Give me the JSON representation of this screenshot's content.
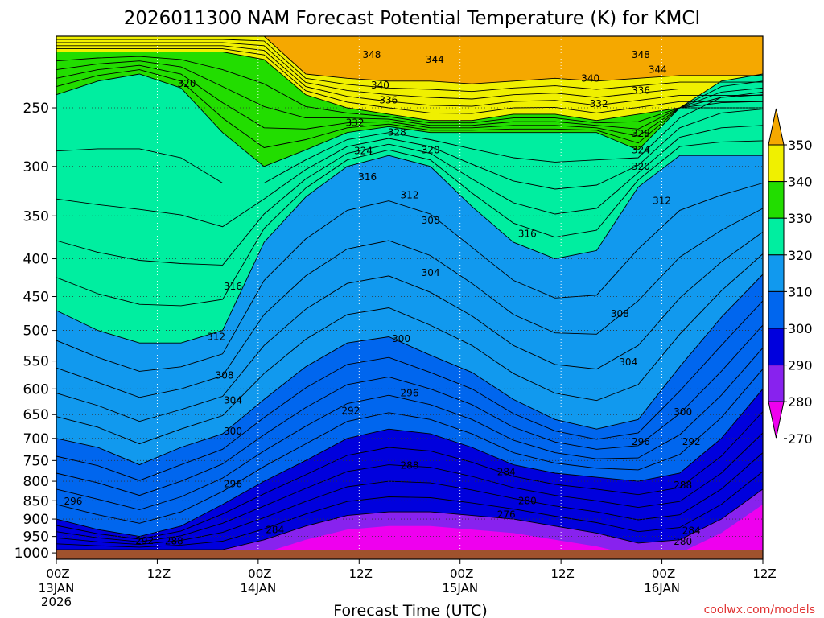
{
  "chart_data": {
    "type": "heatmap",
    "title": "2026011300 NAM Forecast Potential Temperature (K) for KMCI",
    "xlabel": "Forecast Time (UTC)",
    "ylabel": "",
    "watermark": "coolwx.com/models",
    "x_ticks": [
      {
        "hour": 0,
        "label": "00Z",
        "sub": [
          "13JAN",
          "2026"
        ]
      },
      {
        "hour": 12,
        "label": "12Z",
        "sub": []
      },
      {
        "hour": 24,
        "label": "00Z",
        "sub": [
          "14JAN"
        ]
      },
      {
        "hour": 36,
        "label": "12Z",
        "sub": []
      },
      {
        "hour": 48,
        "label": "00Z",
        "sub": [
          "15JAN"
        ]
      },
      {
        "hour": 60,
        "label": "12Z",
        "sub": []
      },
      {
        "hour": 72,
        "label": "00Z",
        "sub": [
          "16JAN"
        ]
      },
      {
        "hour": 84,
        "label": "12Z",
        "sub": []
      }
    ],
    "x_range": [
      0,
      84
    ],
    "y_ticks": [
      250,
      300,
      350,
      400,
      450,
      500,
      550,
      600,
      650,
      700,
      750,
      800,
      850,
      900,
      950,
      1000
    ],
    "y_range_hpa": [
      200,
      1020
    ],
    "surface_hpa": 990,
    "colors": {
      "ground": "#a0522d",
      "270": "#ee00ee",
      "280": "#8822ee",
      "290": "#0000dd",
      "300": "#0066ee",
      "310": "#1199ee",
      "320": "#00eea0",
      "330": "#22dd00",
      "340": "#f0f000",
      "350": "#f5a800"
    },
    "colorbar": {
      "labels": [
        350,
        340,
        330,
        320,
        310,
        300,
        290,
        280,
        270
      ],
      "colors": [
        "#f5a800",
        "#f0f000",
        "#22dd00",
        "#00eea0",
        "#1199ee",
        "#0066ee",
        "#0000dd",
        "#8822ee",
        "#ee00ee"
      ]
    },
    "series": [
      {
        "theta": 320,
        "pressure_hpa": [
          240,
          230,
          225,
          235,
          270,
          300,
          285,
          270,
          265,
          270,
          270,
          270,
          270,
          270,
          285,
          250,
          230,
          225
        ]
      },
      {
        "theta": 330,
        "pressure_hpa": [
          210,
          210,
          210,
          210,
          210,
          215,
          240,
          250,
          255,
          260,
          260,
          255,
          255,
          260,
          255,
          250,
          250,
          250
        ]
      },
      {
        "theta": 340,
        "pressure_hpa": [
          200,
          200,
          200,
          200,
          200,
          200,
          225,
          228,
          230,
          230,
          232,
          230,
          228,
          230,
          228,
          226,
          226,
          226
        ]
      },
      {
        "theta": 310,
        "pressure_hpa": [
          470,
          500,
          520,
          520,
          500,
          380,
          330,
          300,
          290,
          300,
          340,
          380,
          400,
          390,
          320,
          290,
          290,
          290
        ]
      },
      {
        "theta": 300,
        "pressure_hpa": [
          700,
          720,
          760,
          720,
          690,
          620,
          560,
          520,
          510,
          540,
          570,
          620,
          660,
          680,
          660,
          560,
          480,
          420
        ]
      },
      {
        "theta": 290,
        "pressure_hpa": [
          900,
          930,
          950,
          920,
          860,
          800,
          750,
          700,
          680,
          690,
          720,
          760,
          780,
          790,
          800,
          780,
          700,
          600
        ]
      },
      {
        "theta": 280,
        "pressure_hpa": [
          990,
          990,
          990,
          990,
          990,
          960,
          920,
          890,
          880,
          880,
          890,
          900,
          920,
          940,
          970,
          960,
          900,
          820
        ]
      }
    ],
    "contour_labels": [
      {
        "text": "348",
        "hour": 37.5,
        "hpa": 212
      },
      {
        "text": "344",
        "hour": 45,
        "hpa": 215
      },
      {
        "text": "348",
        "hour": 69.5,
        "hpa": 212
      },
      {
        "text": "344",
        "hour": 71.5,
        "hpa": 222
      },
      {
        "text": "320",
        "hour": 15.5,
        "hpa": 232
      },
      {
        "text": "340",
        "hour": 38.5,
        "hpa": 233
      },
      {
        "text": "336",
        "hour": 39.5,
        "hpa": 244
      },
      {
        "text": "340",
        "hour": 63.5,
        "hpa": 228
      },
      {
        "text": "336",
        "hour": 69.5,
        "hpa": 237
      },
      {
        "text": "332",
        "hour": 64.5,
        "hpa": 247
      },
      {
        "text": "332",
        "hour": 35.5,
        "hpa": 262
      },
      {
        "text": "328",
        "hour": 40.5,
        "hpa": 270
      },
      {
        "text": "328",
        "hour": 69.5,
        "hpa": 271
      },
      {
        "text": "324",
        "hour": 36.5,
        "hpa": 286
      },
      {
        "text": "320",
        "hour": 44.5,
        "hpa": 285
      },
      {
        "text": "324",
        "hour": 69.5,
        "hpa": 285
      },
      {
        "text": "320",
        "hour": 69.5,
        "hpa": 300
      },
      {
        "text": "316",
        "hour": 37,
        "hpa": 310
      },
      {
        "text": "312",
        "hour": 42,
        "hpa": 328
      },
      {
        "text": "312",
        "hour": 72,
        "hpa": 334
      },
      {
        "text": "308",
        "hour": 44.5,
        "hpa": 355
      },
      {
        "text": "316",
        "hour": 56,
        "hpa": 370
      },
      {
        "text": "304",
        "hour": 44.5,
        "hpa": 418
      },
      {
        "text": "316",
        "hour": 21,
        "hpa": 436
      },
      {
        "text": "308",
        "hour": 67,
        "hpa": 475
      },
      {
        "text": "312",
        "hour": 19,
        "hpa": 510
      },
      {
        "text": "300",
        "hour": 41,
        "hpa": 513
      },
      {
        "text": "304",
        "hour": 68,
        "hpa": 552
      },
      {
        "text": "308",
        "hour": 20,
        "hpa": 575
      },
      {
        "text": "296",
        "hour": 42,
        "hpa": 608
      },
      {
        "text": "304",
        "hour": 21,
        "hpa": 622
      },
      {
        "text": "292",
        "hour": 35,
        "hpa": 642
      },
      {
        "text": "300",
        "hour": 74.5,
        "hpa": 645
      },
      {
        "text": "300",
        "hour": 21,
        "hpa": 685
      },
      {
        "text": "296",
        "hour": 69.5,
        "hpa": 707
      },
      {
        "text": "292",
        "hour": 75.5,
        "hpa": 707
      },
      {
        "text": "288",
        "hour": 42,
        "hpa": 762
      },
      {
        "text": "284",
        "hour": 53.5,
        "hpa": 777
      },
      {
        "text": "296",
        "hour": 21,
        "hpa": 807
      },
      {
        "text": "288",
        "hour": 74.5,
        "hpa": 810
      },
      {
        "text": "280",
        "hour": 56,
        "hpa": 851
      },
      {
        "text": "296",
        "hour": 2,
        "hpa": 852
      },
      {
        "text": "276",
        "hour": 53.5,
        "hpa": 887
      },
      {
        "text": "284",
        "hour": 26,
        "hpa": 931
      },
      {
        "text": "284",
        "hour": 75.5,
        "hpa": 933
      },
      {
        "text": "292",
        "hour": 10.5,
        "hpa": 963
      },
      {
        "text": "288",
        "hour": 14,
        "hpa": 964
      },
      {
        "text": "280",
        "hour": 74.5,
        "hpa": 965
      }
    ]
  }
}
